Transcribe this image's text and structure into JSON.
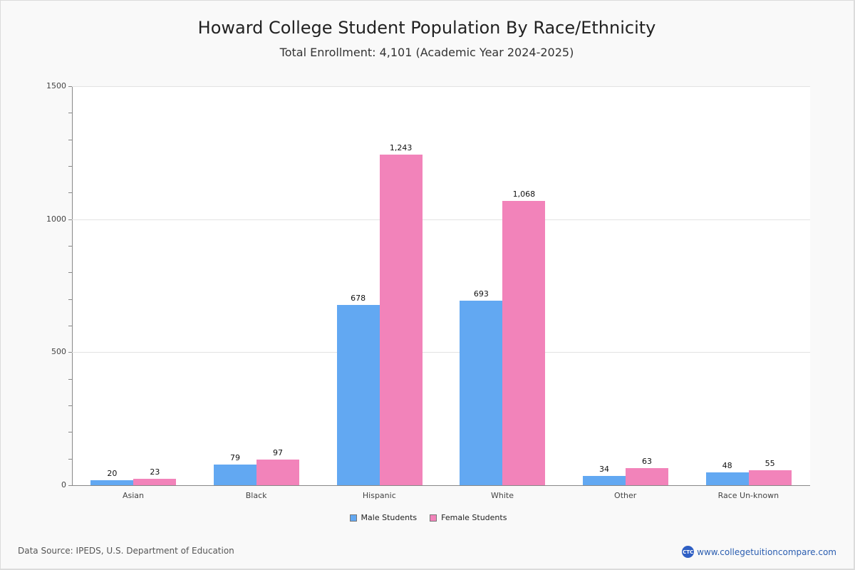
{
  "header": {
    "title": "Howard College Student Population By Race/Ethnicity",
    "subtitle": "Total Enrollment: 4,101 (Academic Year 2024-2025)"
  },
  "footer": {
    "source": "Data Source: IPEDS, U.S. Department of Education",
    "brand_text": "www.collegetuitioncompare.com",
    "logo_text": "CTC",
    "logo_icon": "ctc-logo-icon"
  },
  "colors": {
    "male": "#62a8f2",
    "female": "#f283ba"
  },
  "chart_data": {
    "type": "bar",
    "title": "Howard College Student Population By Race/Ethnicity",
    "subtitle": "Total Enrollment: 4,101 (Academic Year 2024-2025)",
    "xlabel": "",
    "ylabel": "",
    "ylim": [
      0,
      1500
    ],
    "yticks": [
      0,
      500,
      1000,
      1500
    ],
    "grid": true,
    "legend_position": "bottom",
    "categories": [
      "Asian",
      "Black",
      "Hispanic",
      "White",
      "Other",
      "Race Un-known"
    ],
    "series": [
      {
        "name": "Male Students",
        "color": "#62a8f2",
        "values": [
          20,
          79,
          678,
          693,
          34,
          48
        ],
        "labels": [
          "20",
          "79",
          "678",
          "693",
          "34",
          "48"
        ]
      },
      {
        "name": "Female Students",
        "color": "#f283ba",
        "values": [
          23,
          97,
          1243,
          1068,
          63,
          55
        ],
        "labels": [
          "23",
          "97",
          "1,243",
          "1,068",
          "63",
          "55"
        ]
      }
    ]
  }
}
